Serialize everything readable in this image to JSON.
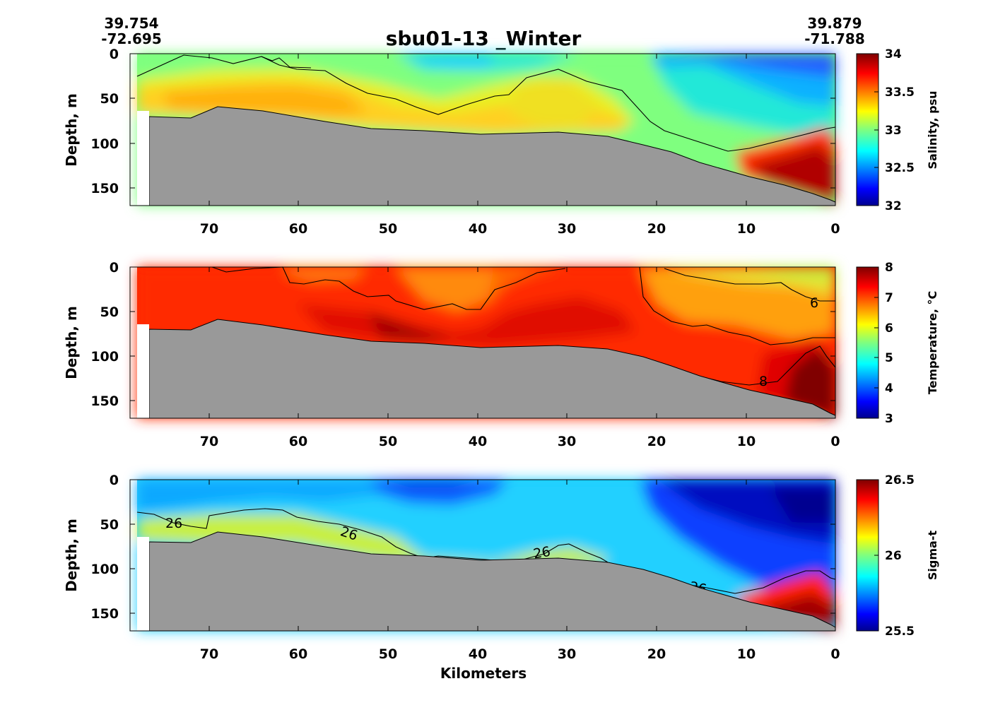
{
  "figure": {
    "title": "sbu01-13 _Winter",
    "left_station": {
      "lat": "39.754",
      "lon": "-72.695"
    },
    "right_station": {
      "lat": "39.879",
      "lon": "-71.788"
    },
    "xlabel": "Kilometers"
  },
  "chart_data": [
    {
      "type": "heatmap",
      "name": "salinity",
      "xlabel": "Kilometers",
      "ylabel": "Depth, m",
      "xlim": [
        78,
        0
      ],
      "ylim": [
        170,
        0
      ],
      "xticks": [
        70,
        60,
        50,
        40,
        30,
        20,
        10,
        0
      ],
      "yticks": [
        0,
        50,
        100,
        150
      ],
      "colorbar": {
        "label": "Salinity, psu",
        "range": [
          32,
          34
        ],
        "ticks": [
          "34",
          "33.5",
          "33",
          "32.5",
          "32"
        ]
      },
      "bottom_depth_profile": [
        [
          77,
          70
        ],
        [
          72,
          71
        ],
        [
          69,
          59
        ],
        [
          64,
          66
        ],
        [
          57,
          73
        ],
        [
          50,
          83
        ],
        [
          44,
          86
        ],
        [
          40,
          90
        ],
        [
          30,
          89
        ],
        [
          25,
          92
        ],
        [
          22,
          96
        ],
        [
          15,
          120
        ],
        [
          10,
          132
        ],
        [
          5,
          144
        ],
        [
          2,
          158
        ],
        [
          0,
          162
        ]
      ],
      "contour_levels": [],
      "contour_labels": []
    },
    {
      "type": "heatmap",
      "name": "temperature",
      "xlabel": "Kilometers",
      "ylabel": "Depth, m",
      "xlim": [
        78,
        0
      ],
      "ylim": [
        170,
        0
      ],
      "xticks": [
        70,
        60,
        50,
        40,
        30,
        20,
        10,
        0
      ],
      "yticks": [
        0,
        50,
        100,
        150
      ],
      "colorbar": {
        "label": "Temperature, °C",
        "range": [
          3,
          8
        ],
        "ticks": [
          "8",
          "7",
          "6",
          "5",
          "4",
          "3"
        ]
      },
      "bottom_depth_profile": [
        [
          77,
          70
        ],
        [
          72,
          71
        ],
        [
          69,
          59
        ],
        [
          64,
          66
        ],
        [
          57,
          73
        ],
        [
          50,
          83
        ],
        [
          44,
          86
        ],
        [
          40,
          90
        ],
        [
          30,
          89
        ],
        [
          25,
          92
        ],
        [
          22,
          96
        ],
        [
          15,
          120
        ],
        [
          10,
          132
        ],
        [
          5,
          144
        ],
        [
          2,
          158
        ],
        [
          0,
          162
        ]
      ],
      "contour_levels": [
        6,
        8
      ],
      "contour_labels": [
        {
          "text": "6",
          "km": 2.5,
          "depth": 40
        },
        {
          "text": "8",
          "km": 8.5,
          "depth": 128
        }
      ]
    },
    {
      "type": "heatmap",
      "name": "sigma_t",
      "xlabel": "Kilometers",
      "ylabel": "Depth, m",
      "xlim": [
        78,
        0
      ],
      "ylim": [
        170,
        0
      ],
      "xticks": [
        70,
        60,
        50,
        40,
        30,
        20,
        10,
        0
      ],
      "yticks": [
        0,
        50,
        100,
        150
      ],
      "colorbar": {
        "label": "Sigma-t",
        "range": [
          25.5,
          26.5
        ],
        "ticks": [
          "26.5",
          "26",
          "25.5"
        ]
      },
      "bottom_depth_profile": [
        [
          77,
          70
        ],
        [
          72,
          71
        ],
        [
          69,
          59
        ],
        [
          64,
          66
        ],
        [
          57,
          73
        ],
        [
          50,
          83
        ],
        [
          44,
          86
        ],
        [
          40,
          90
        ],
        [
          30,
          89
        ],
        [
          25,
          92
        ],
        [
          22,
          96
        ],
        [
          15,
          120
        ],
        [
          10,
          132
        ],
        [
          5,
          144
        ],
        [
          2,
          158
        ],
        [
          0,
          162
        ]
      ],
      "contour_levels": [
        26
      ],
      "contour_labels": [
        {
          "text": "26",
          "km": 74.5,
          "depth": 49
        },
        {
          "text": "26",
          "km": 55.5,
          "depth": 60
        },
        {
          "text": "26",
          "km": 33,
          "depth": 82
        },
        {
          "text": "26",
          "km": 15.5,
          "depth": 125
        }
      ]
    }
  ],
  "colors": {
    "bathymetry": "#999999",
    "colormap": "jet"
  }
}
